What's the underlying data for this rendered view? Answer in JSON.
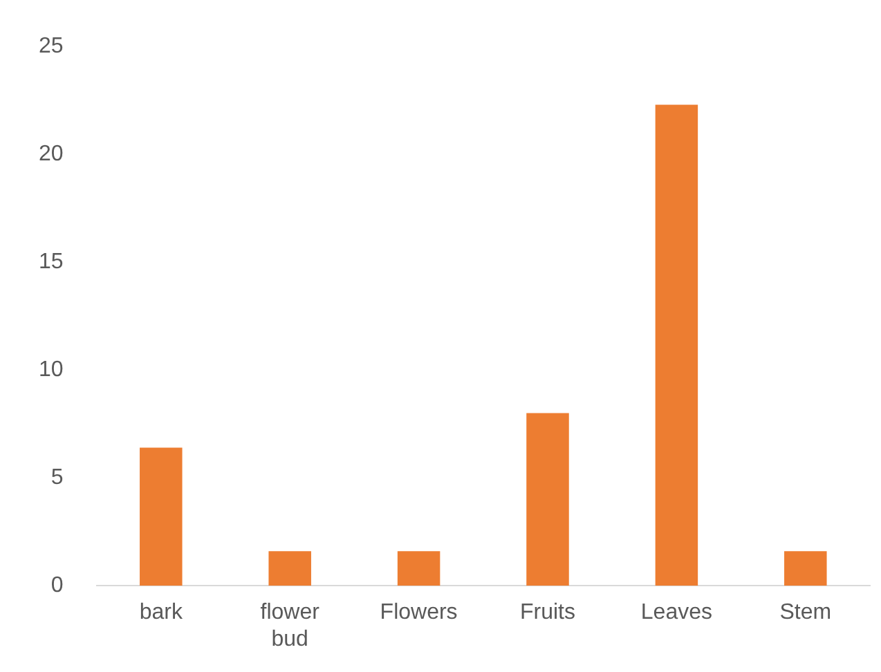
{
  "chart_data": {
    "type": "bar",
    "categories": [
      "bark",
      "flower bud",
      "Flowers",
      "Fruits",
      "Leaves",
      "Stem"
    ],
    "values": [
      6.4,
      1.6,
      1.6,
      8,
      22.3,
      1.6
    ],
    "color": "#ed7d31",
    "ylim": [
      0,
      25
    ],
    "yticks": [
      0,
      5,
      10,
      15,
      20,
      25
    ],
    "grid": false,
    "legend": false
  }
}
